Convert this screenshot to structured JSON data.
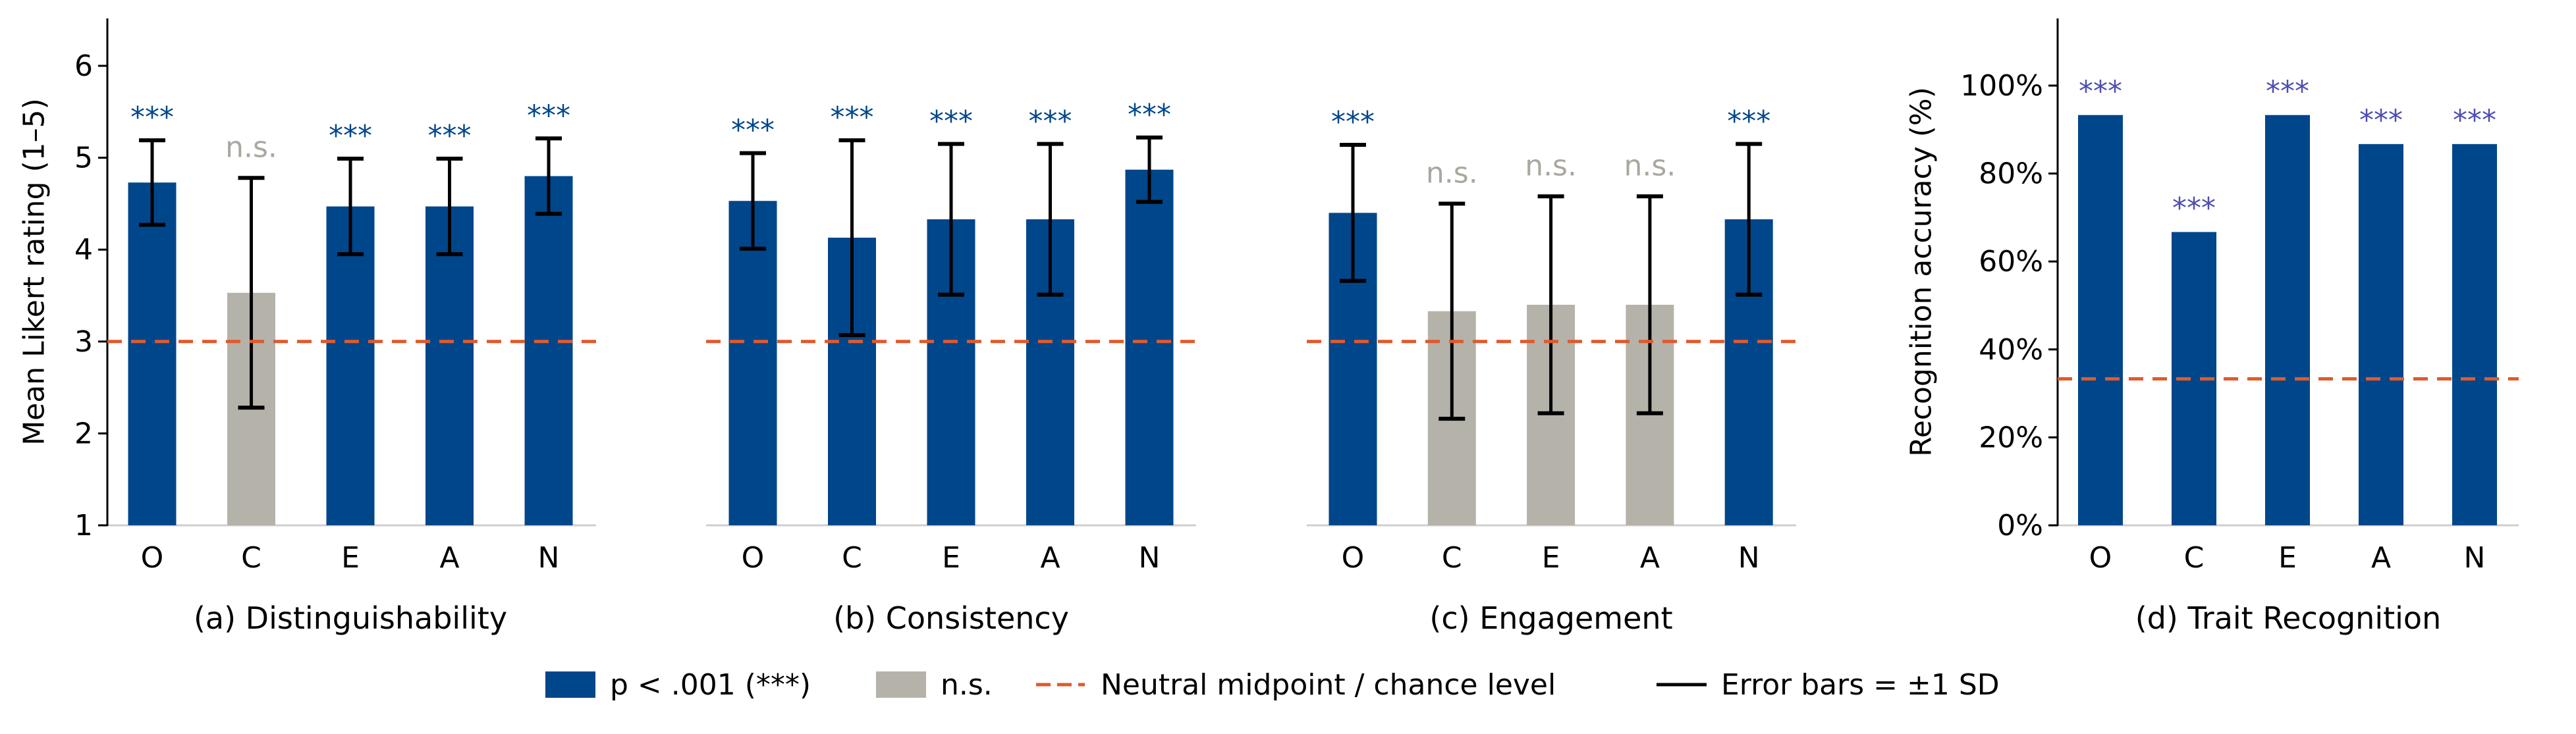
{
  "colors": {
    "significant": "#00468b",
    "not_significant": "#b5b2aa",
    "reference_line": "#e05a2b",
    "error_bar": "#000000",
    "sig_label_likert": "#00468b",
    "sig_label_ns": "#aaa79f",
    "sig_label_recognition": "#4d4db3",
    "baseline": "#cfcfcf"
  },
  "legend": {
    "placement": "bottom-center",
    "items": [
      {
        "kind": "patch",
        "color_key": "significant",
        "label": "p < .001 (***)"
      },
      {
        "kind": "patch",
        "color_key": "not_significant",
        "label": "n.s."
      },
      {
        "kind": "dashed-line",
        "color_key": "reference_line",
        "label": "Neutral midpoint / chance level"
      },
      {
        "kind": "line",
        "color_key": "error_bar",
        "label": "Error bars = ±1 SD"
      }
    ]
  },
  "chart_data": [
    {
      "type": "bar",
      "title": "(a) Distinguishability",
      "ylabel": "Mean Likert rating (1–5)",
      "ylim": [
        1,
        6.5
      ],
      "yticks": [
        1,
        2,
        3,
        4,
        5,
        6
      ],
      "ytick_labels": [
        "1",
        "2",
        "3",
        "4",
        "5",
        "6"
      ],
      "show_yaxis": true,
      "categories": [
        "O",
        "C",
        "E",
        "A",
        "N"
      ],
      "values": [
        4.73,
        3.53,
        4.47,
        4.47,
        4.8
      ],
      "sd": [
        0.46,
        1.25,
        0.52,
        0.52,
        0.41
      ],
      "significance": [
        "***",
        "n.s.",
        "***",
        "***",
        "***"
      ],
      "reference_line": 3,
      "grid": false
    },
    {
      "type": "bar",
      "title": "(b) Consistency",
      "ylim": [
        1,
        6.5
      ],
      "show_yaxis": false,
      "categories": [
        "O",
        "C",
        "E",
        "A",
        "N"
      ],
      "values": [
        4.53,
        4.13,
        4.33,
        4.33,
        4.87
      ],
      "sd": [
        0.52,
        1.06,
        0.82,
        0.82,
        0.35
      ],
      "significance": [
        "***",
        "***",
        "***",
        "***",
        "***"
      ],
      "reference_line": 3,
      "grid": false
    },
    {
      "type": "bar",
      "title": "(c) Engagement",
      "ylim": [
        1,
        6.5
      ],
      "show_yaxis": false,
      "categories": [
        "O",
        "C",
        "E",
        "A",
        "N"
      ],
      "values": [
        4.4,
        3.33,
        3.4,
        3.4,
        4.33
      ],
      "sd": [
        0.74,
        1.17,
        1.18,
        1.18,
        0.82
      ],
      "significance": [
        "***",
        "n.s.",
        "n.s.",
        "n.s.",
        "***"
      ],
      "reference_line": 3,
      "grid": false
    },
    {
      "type": "bar",
      "title": "(d) Trait Recognition",
      "ylabel": "Recognition accuracy (%)",
      "ylim": [
        0,
        115
      ],
      "yticks": [
        0,
        20,
        40,
        60,
        80,
        100
      ],
      "ytick_labels": [
        "0%",
        "20%",
        "40%",
        "60%",
        "80%",
        "100%"
      ],
      "show_yaxis": true,
      "categories": [
        "O",
        "C",
        "E",
        "A",
        "N"
      ],
      "values": [
        93.3,
        66.7,
        93.3,
        86.7,
        86.7
      ],
      "significance": [
        "***",
        "***",
        "***",
        "***",
        "***"
      ],
      "reference_line": 33.3,
      "grid": false
    }
  ]
}
